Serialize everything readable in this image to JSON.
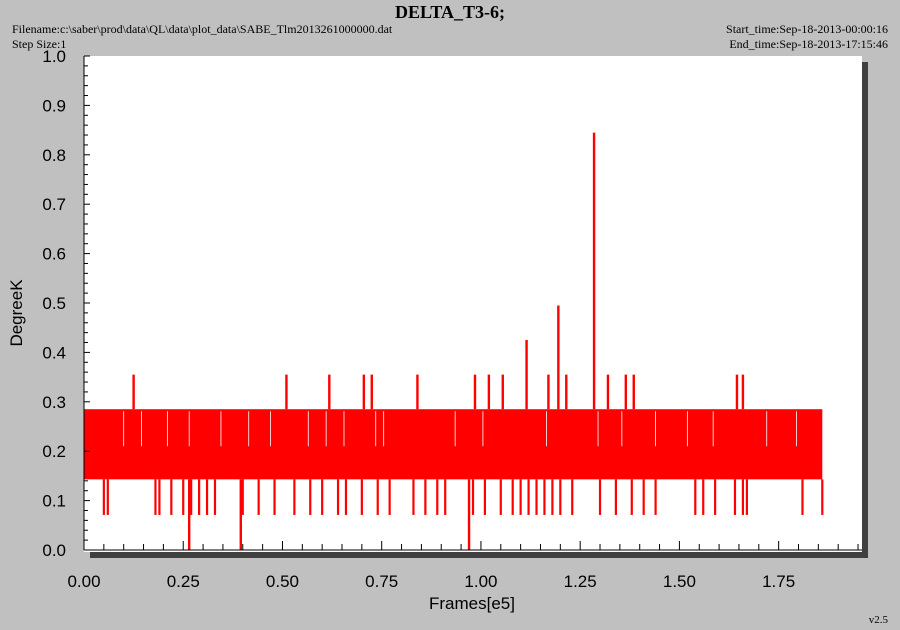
{
  "header": {
    "title": "DELTA_T3-6;",
    "filename": "Filename:c:\\saber\\prod\\data\\QL\\data\\plot_data\\SABE_Tlm2013261000000.dat",
    "step_size": "Step Size:1",
    "start_time": "Start_time:Sep-18-2013-00:00:16",
    "end_time": "End_time:Sep-18-2013-17:15:46"
  },
  "footer": {
    "version": "v2.5"
  },
  "colors": {
    "series": "#ff0000",
    "background": "#c0c0c0",
    "plot": "#ffffff",
    "shadow": "#404040"
  },
  "chart_data": {
    "type": "line",
    "title": "DELTA_T3-6;",
    "xlabel": "Frames[e5]",
    "ylabel": "DegreeK",
    "xlim": [
      0.0,
      1.96
    ],
    "ylim": [
      0.0,
      1.0
    ],
    "xticks": [
      "0.00",
      "0.25",
      "0.50",
      "0.75",
      "1.00",
      "1.25",
      "1.50",
      "1.75"
    ],
    "xtick_values": [
      0.0,
      0.25,
      0.5,
      0.75,
      1.0,
      1.25,
      1.5,
      1.75
    ],
    "yticks": [
      "0.0",
      "0.1",
      "0.2",
      "0.3",
      "0.4",
      "0.5",
      "0.6",
      "0.7",
      "0.8",
      "0.9",
      "1.0"
    ],
    "ytick_values": [
      0.0,
      0.1,
      0.2,
      0.3,
      0.4,
      0.5,
      0.6,
      0.7,
      0.8,
      0.9,
      1.0
    ],
    "grid": false,
    "series": [
      {
        "color": "#ff0000",
        "x_range": [
          0.0,
          1.86
        ],
        "typical_band": [
          0.143,
          0.285
        ],
        "low_values_x": [
          0.05,
          0.06,
          0.18,
          0.19,
          0.22,
          0.25,
          0.27,
          0.29,
          0.31,
          0.33,
          0.4,
          0.44,
          0.48,
          0.53,
          0.57,
          0.6,
          0.64,
          0.66,
          0.7,
          0.74,
          0.77,
          0.83,
          0.86,
          0.89,
          0.91,
          0.98,
          1.01,
          1.05,
          1.08,
          1.1,
          1.12,
          1.14,
          1.16,
          1.18,
          1.2,
          1.23,
          1.3,
          1.34,
          1.38,
          1.41,
          1.44,
          1.54,
          1.56,
          1.59,
          1.64,
          1.66,
          1.67,
          1.81,
          1.86
        ],
        "low_value": 0.071,
        "dips": [
          {
            "x": 0.265,
            "y": 0.0
          },
          {
            "x": 0.395,
            "y": 0.0
          },
          {
            "x": 0.97,
            "y": 0.0
          }
        ],
        "spikes": [
          {
            "x": 0.125,
            "y": 0.355
          },
          {
            "x": 0.51,
            "y": 0.355
          },
          {
            "x": 0.618,
            "y": 0.355
          },
          {
            "x": 0.705,
            "y": 0.355
          },
          {
            "x": 0.725,
            "y": 0.355
          },
          {
            "x": 0.84,
            "y": 0.355
          },
          {
            "x": 0.985,
            "y": 0.355
          },
          {
            "x": 1.02,
            "y": 0.355
          },
          {
            "x": 1.055,
            "y": 0.355
          },
          {
            "x": 1.115,
            "y": 0.425
          },
          {
            "x": 1.17,
            "y": 0.355
          },
          {
            "x": 1.195,
            "y": 0.495
          },
          {
            "x": 1.215,
            "y": 0.355
          },
          {
            "x": 1.285,
            "y": 0.845
          },
          {
            "x": 1.32,
            "y": 0.355
          },
          {
            "x": 1.365,
            "y": 0.355
          },
          {
            "x": 1.385,
            "y": 0.355
          },
          {
            "x": 1.645,
            "y": 0.355
          },
          {
            "x": 1.66,
            "y": 0.355
          }
        ]
      }
    ]
  }
}
